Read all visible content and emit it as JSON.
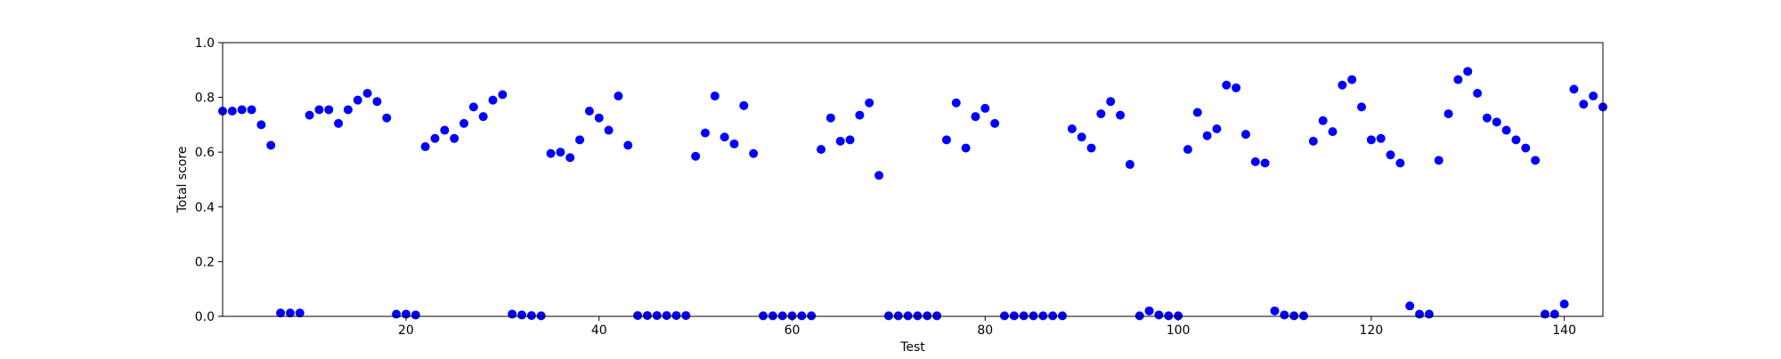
{
  "chart_data": {
    "type": "scatter",
    "title": "",
    "xlabel": "Test",
    "ylabel": "Total score",
    "xlim": [
      1,
      144
    ],
    "ylim": [
      0.0,
      1.0
    ],
    "xticks": [
      20,
      40,
      60,
      80,
      100,
      120,
      140
    ],
    "yticks": [
      0.0,
      0.2,
      0.4,
      0.6,
      0.8,
      1.0
    ],
    "xtick_labels": [
      "20",
      "40",
      "60",
      "80",
      "100",
      "120",
      "140"
    ],
    "ytick_labels": [
      "0.0",
      "0.2",
      "0.4",
      "0.6",
      "0.8",
      "1.0"
    ],
    "grid": false,
    "legend": "none",
    "marker_color": "#0000ff",
    "series": [
      {
        "x": [
          1,
          2,
          3,
          4,
          5,
          6,
          7,
          8,
          9,
          10,
          11,
          12,
          13,
          14,
          15,
          16,
          17,
          18,
          19,
          20,
          21,
          22,
          23,
          24,
          25,
          26,
          27,
          28,
          29,
          30,
          31,
          32,
          33,
          34,
          35,
          36,
          37,
          38,
          39,
          40,
          41,
          42,
          43,
          44,
          45,
          46,
          47,
          48,
          49,
          50,
          51,
          52,
          53,
          54,
          55,
          56,
          57,
          58,
          59,
          60,
          61,
          62,
          63,
          64,
          65,
          66,
          67,
          68,
          69,
          70,
          71,
          72,
          73,
          74,
          75,
          76,
          77,
          78,
          79,
          80,
          81,
          82,
          83,
          84,
          85,
          86,
          87,
          88,
          89,
          90,
          91,
          92,
          93,
          94,
          95,
          96,
          97,
          98,
          99,
          100,
          101,
          102,
          103,
          104,
          105,
          106,
          107,
          108,
          109,
          110,
          111,
          112,
          113,
          114,
          115,
          116,
          117,
          118,
          119,
          120,
          121,
          122,
          123,
          124,
          125,
          126,
          127,
          128,
          129,
          130,
          131,
          132,
          133,
          134,
          135,
          136,
          137,
          138,
          139,
          140,
          141,
          142,
          143,
          144
        ],
        "y": [
          0.75,
          0.75,
          0.755,
          0.755,
          0.7,
          0.625,
          0.012,
          0.012,
          0.012,
          0.735,
          0.755,
          0.755,
          0.705,
          0.755,
          0.79,
          0.815,
          0.785,
          0.725,
          0.008,
          0.008,
          0.005,
          0.62,
          0.65,
          0.68,
          0.65,
          0.705,
          0.765,
          0.73,
          0.79,
          0.81,
          0.008,
          0.005,
          0.003,
          0.002,
          0.595,
          0.6,
          0.58,
          0.645,
          0.75,
          0.725,
          0.68,
          0.805,
          0.625,
          0.003,
          0.003,
          0.003,
          0.003,
          0.003,
          0.003,
          0.585,
          0.67,
          0.805,
          0.655,
          0.63,
          0.77,
          0.595,
          0.002,
          0.002,
          0.002,
          0.002,
          0.002,
          0.002,
          0.61,
          0.725,
          0.64,
          0.645,
          0.735,
          0.78,
          0.515,
          0.002,
          0.002,
          0.002,
          0.002,
          0.002,
          0.002,
          0.645,
          0.78,
          0.615,
          0.73,
          0.76,
          0.705,
          0.002,
          0.002,
          0.002,
          0.002,
          0.002,
          0.002,
          0.002,
          0.685,
          0.655,
          0.615,
          0.74,
          0.785,
          0.735,
          0.555,
          0.002,
          0.02,
          0.005,
          0.002,
          0.002,
          0.61,
          0.745,
          0.66,
          0.685,
          0.845,
          0.835,
          0.665,
          0.565,
          0.56,
          0.02,
          0.005,
          0.002,
          0.002,
          0.64,
          0.715,
          0.675,
          0.845,
          0.865,
          0.765,
          0.645,
          0.65,
          0.59,
          0.56,
          0.038,
          0.008,
          0.008,
          0.57,
          0.74,
          0.865,
          0.895,
          0.815,
          0.725,
          0.71,
          0.68,
          0.645,
          0.615,
          0.57,
          0.008,
          0.008,
          0.045,
          0.83,
          0.775,
          0.805,
          0.765
        ]
      }
    ]
  }
}
